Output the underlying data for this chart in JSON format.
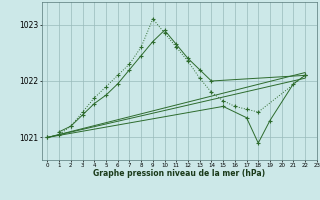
{
  "xlabel": "Graphe pression niveau de la mer (hPa)",
  "background_color": "#cce8e8",
  "plot_bg_color": "#cce8e8",
  "line_color": "#2d6b2d",
  "ylim": [
    1020.6,
    1023.4
  ],
  "xlim": [
    -0.5,
    23
  ],
  "yticks": [
    1021,
    1022,
    1023
  ],
  "xticks": [
    0,
    1,
    2,
    3,
    4,
    5,
    6,
    7,
    8,
    9,
    10,
    11,
    12,
    13,
    14,
    15,
    16,
    17,
    18,
    19,
    20,
    21,
    22,
    23
  ],
  "series": [
    {
      "x": [
        0,
        1,
        2,
        3,
        4,
        5,
        6,
        7,
        8,
        9,
        10,
        11,
        12,
        13,
        14,
        15,
        16,
        17,
        18,
        22
      ],
      "y": [
        1021.0,
        1021.05,
        1021.2,
        1021.45,
        1021.7,
        1021.9,
        1022.1,
        1022.3,
        1022.6,
        1023.1,
        1022.85,
        1022.6,
        1022.35,
        1022.05,
        1021.8,
        1021.65,
        1021.55,
        1021.5,
        1021.45,
        1022.1
      ],
      "style": "dotted",
      "marker": "+"
    },
    {
      "x": [
        1,
        2,
        3,
        4,
        5,
        6,
        7,
        8,
        9,
        10,
        11,
        12,
        13,
        14,
        22
      ],
      "y": [
        1021.1,
        1021.2,
        1021.4,
        1021.6,
        1021.75,
        1021.95,
        1022.2,
        1022.45,
        1022.7,
        1022.9,
        1022.65,
        1022.4,
        1022.2,
        1022.0,
        1022.1
      ],
      "style": "solid",
      "marker": "+"
    },
    {
      "x": [
        0,
        22
      ],
      "y": [
        1021.0,
        1022.15
      ],
      "style": "solid",
      "marker": null
    },
    {
      "x": [
        0,
        15,
        17,
        18,
        19,
        21,
        22
      ],
      "y": [
        1021.0,
        1021.55,
        1021.35,
        1020.9,
        1021.3,
        1021.95,
        1022.1
      ],
      "style": "solid",
      "marker": "+"
    },
    {
      "x": [
        0,
        22
      ],
      "y": [
        1021.0,
        1022.05
      ],
      "style": "solid",
      "marker": null
    }
  ]
}
